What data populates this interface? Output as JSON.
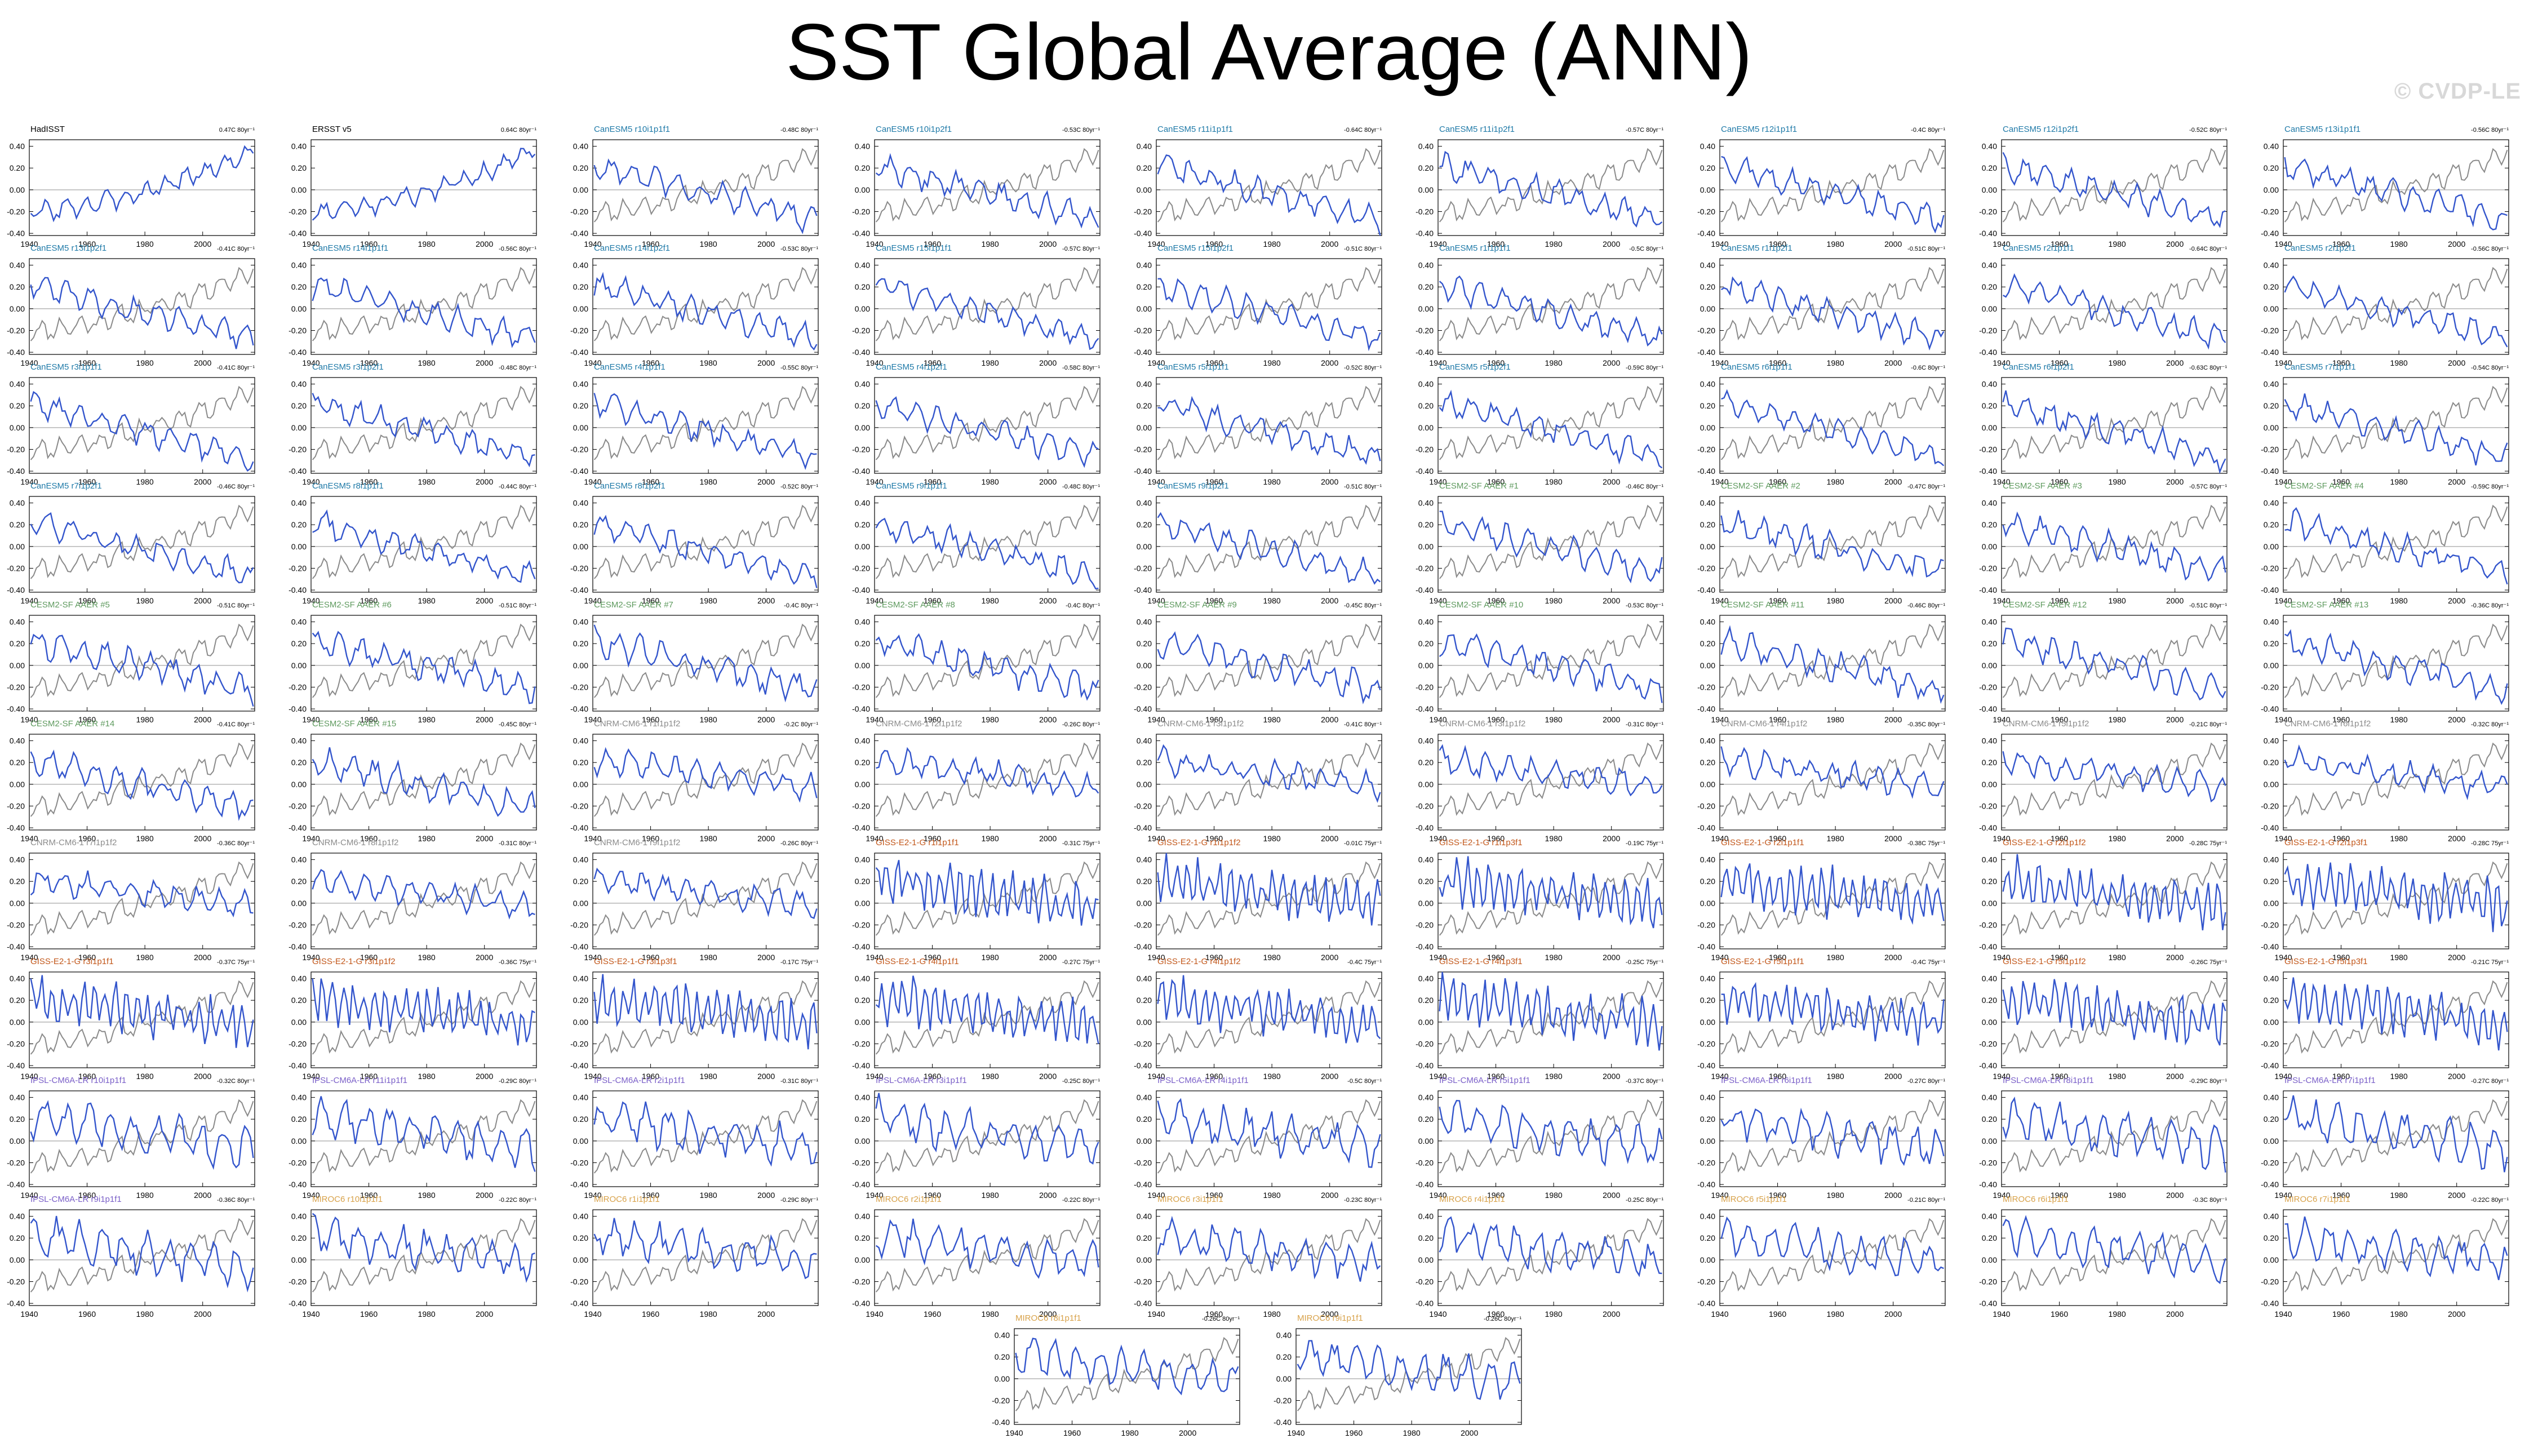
{
  "title": "SST Global Average (ANN)",
  "watermark": "© CVDP-LE",
  "colors": {
    "model_line": "#3355cc",
    "obs_line": "#8a8a8a",
    "obs_title": "#000000",
    "canesm5": "#1f7aa8",
    "cesm2_sf_aaer": "#5e9a5e",
    "cnrm_cm6_1": "#8c8c8c",
    "giss_e2_1_g": "#c2571a",
    "ipsl_cm6a_lr": "#7a5fc8",
    "miroc6": "#d8a24a"
  },
  "chart_data": {
    "type": "line",
    "xlabel": "",
    "ylabel": "",
    "xlim": [
      1940,
      2018
    ],
    "ylim": [
      -0.42,
      0.46
    ],
    "x_ticks": [
      "1940",
      "1960",
      "1980",
      "2000"
    ],
    "y_ticks": [
      "0.40",
      "0.20",
      "0.00",
      "-0.20",
      "-0.40"
    ],
    "grid": false,
    "panels": [
      {
        "title": "HadISST",
        "trend": "0.47C 80yr⁻¹",
        "group": "obs"
      },
      {
        "title": "ERSST v5",
        "trend": "0.64C 80yr⁻¹",
        "group": "obs"
      },
      {
        "title": "CanESM5 r10i1p1f1",
        "trend": "-0.48C 80yr⁻¹",
        "group": "canesm5"
      },
      {
        "title": "CanESM5 r10i1p2f1",
        "trend": "-0.53C 80yr⁻¹",
        "group": "canesm5"
      },
      {
        "title": "CanESM5 r11i1p1f1",
        "trend": "-0.64C 80yr⁻¹",
        "group": "canesm5"
      },
      {
        "title": "CanESM5 r11i1p2f1",
        "trend": "-0.57C 80yr⁻¹",
        "group": "canesm5"
      },
      {
        "title": "CanESM5 r12i1p1f1",
        "trend": "-0.4C 80yr⁻¹",
        "group": "canesm5"
      },
      {
        "title": "CanESM5 r12i1p2f1",
        "trend": "-0.52C 80yr⁻¹",
        "group": "canesm5"
      },
      {
        "title": "CanESM5 r13i1p1f1",
        "trend": "-0.56C 80yr⁻¹",
        "group": "canesm5"
      },
      {
        "title": "CanESM5 r13i1p2f1",
        "trend": "-0.41C 80yr⁻¹",
        "group": "canesm5"
      },
      {
        "title": "CanESM5 r14i1p1f1",
        "trend": "-0.56C 80yr⁻¹",
        "group": "canesm5"
      },
      {
        "title": "CanESM5 r14i1p2f1",
        "trend": "-0.53C 80yr⁻¹",
        "group": "canesm5"
      },
      {
        "title": "CanESM5 r15i1p1f1",
        "trend": "-0.57C 80yr⁻¹",
        "group": "canesm5"
      },
      {
        "title": "CanESM5 r15i1p2f1",
        "trend": "-0.51C 80yr⁻¹",
        "group": "canesm5"
      },
      {
        "title": "CanESM5 r1i1p1f1",
        "trend": "-0.5C 80yr⁻¹",
        "group": "canesm5"
      },
      {
        "title": "CanESM5 r1i1p2f1",
        "trend": "-0.51C 80yr⁻¹",
        "group": "canesm5"
      },
      {
        "title": "CanESM5 r2i1p1f1",
        "trend": "-0.64C 80yr⁻¹",
        "group": "canesm5"
      },
      {
        "title": "CanESM5 r2i1p2f1",
        "trend": "-0.56C 80yr⁻¹",
        "group": "canesm5"
      },
      {
        "title": "CanESM5 r3i1p1f1",
        "trend": "-0.41C 80yr⁻¹",
        "group": "canesm5"
      },
      {
        "title": "CanESM5 r3i1p2f1",
        "trend": "-0.48C 80yr⁻¹",
        "group": "canesm5"
      },
      {
        "title": "CanESM5 r4i1p1f1",
        "trend": "-0.55C 80yr⁻¹",
        "group": "canesm5"
      },
      {
        "title": "CanESM5 r4i1p2f1",
        "trend": "-0.58C 80yr⁻¹",
        "group": "canesm5"
      },
      {
        "title": "CanESM5 r5i1p1f1",
        "trend": "-0.52C 80yr⁻¹",
        "group": "canesm5"
      },
      {
        "title": "CanESM5 r5i1p2f1",
        "trend": "-0.59C 80yr⁻¹",
        "group": "canesm5"
      },
      {
        "title": "CanESM5 r6i1p1f1",
        "trend": "-0.6C 80yr⁻¹",
        "group": "canesm5"
      },
      {
        "title": "CanESM5 r6i1p2f1",
        "trend": "-0.63C 80yr⁻¹",
        "group": "canesm5"
      },
      {
        "title": "CanESM5 r7i1p1f1",
        "trend": "-0.54C 80yr⁻¹",
        "group": "canesm5"
      },
      {
        "title": "CanESM5 r7i1p2f1",
        "trend": "-0.46C 80yr⁻¹",
        "group": "canesm5"
      },
      {
        "title": "CanESM5 r8i1p1f1",
        "trend": "-0.44C 80yr⁻¹",
        "group": "canesm5"
      },
      {
        "title": "CanESM5 r8i1p2f1",
        "trend": "-0.52C 80yr⁻¹",
        "group": "canesm5"
      },
      {
        "title": "CanESM5 r9i1p1f1",
        "trend": "-0.48C 80yr⁻¹",
        "group": "canesm5"
      },
      {
        "title": "CanESM5 r9i1p2f1",
        "trend": "-0.51C 80yr⁻¹",
        "group": "canesm5"
      },
      {
        "title": "CESM2-SF AAER #1",
        "trend": "-0.46C 80yr⁻¹",
        "group": "cesm2_sf_aaer"
      },
      {
        "title": "CESM2-SF AAER #2",
        "trend": "-0.47C 80yr⁻¹",
        "group": "cesm2_sf_aaer"
      },
      {
        "title": "CESM2-SF AAER #3",
        "trend": "-0.57C 80yr⁻¹",
        "group": "cesm2_sf_aaer"
      },
      {
        "title": "CESM2-SF AAER #4",
        "trend": "-0.59C 80yr⁻¹",
        "group": "cesm2_sf_aaer"
      },
      {
        "title": "CESM2-SF AAER #5",
        "trend": "-0.51C 80yr⁻¹",
        "group": "cesm2_sf_aaer"
      },
      {
        "title": "CESM2-SF AAER #6",
        "trend": "-0.51C 80yr⁻¹",
        "group": "cesm2_sf_aaer"
      },
      {
        "title": "CESM2-SF AAER #7",
        "trend": "-0.4C 80yr⁻¹",
        "group": "cesm2_sf_aaer"
      },
      {
        "title": "CESM2-SF AAER #8",
        "trend": "-0.4C 80yr⁻¹",
        "group": "cesm2_sf_aaer"
      },
      {
        "title": "CESM2-SF AAER #9",
        "trend": "-0.45C 80yr⁻¹",
        "group": "cesm2_sf_aaer"
      },
      {
        "title": "CESM2-SF AAER #10",
        "trend": "-0.53C 80yr⁻¹",
        "group": "cesm2_sf_aaer"
      },
      {
        "title": "CESM2-SF AAER #11",
        "trend": "-0.46C 80yr⁻¹",
        "group": "cesm2_sf_aaer"
      },
      {
        "title": "CESM2-SF AAER #12",
        "trend": "-0.51C 80yr⁻¹",
        "group": "cesm2_sf_aaer"
      },
      {
        "title": "CESM2-SF AAER #13",
        "trend": "-0.36C 80yr⁻¹",
        "group": "cesm2_sf_aaer"
      },
      {
        "title": "CESM2-SF AAER #14",
        "trend": "-0.41C 80yr⁻¹",
        "group": "cesm2_sf_aaer"
      },
      {
        "title": "CESM2-SF AAER #15",
        "trend": "-0.45C 80yr⁻¹",
        "group": "cesm2_sf_aaer"
      },
      {
        "title": "CNRM-CM6-1 r1i1p1f2",
        "trend": "-0.2C 80yr⁻¹",
        "group": "cnrm_cm6_1"
      },
      {
        "title": "CNRM-CM6-1 r2i1p1f2",
        "trend": "-0.26C 80yr⁻¹",
        "group": "cnrm_cm6_1"
      },
      {
        "title": "CNRM-CM6-1 r3i1p1f2",
        "trend": "-0.41C 80yr⁻¹",
        "group": "cnrm_cm6_1"
      },
      {
        "title": "CNRM-CM6-1 r3i1p1f2",
        "trend": "-0.31C 80yr⁻¹",
        "group": "cnrm_cm6_1"
      },
      {
        "title": "CNRM-CM6-1 r4i1p1f2",
        "trend": "-0.35C 80yr⁻¹",
        "group": "cnrm_cm6_1"
      },
      {
        "title": "CNRM-CM6-1 r5i1p1f2",
        "trend": "-0.21C 80yr⁻¹",
        "group": "cnrm_cm6_1"
      },
      {
        "title": "CNRM-CM6-1 r6i1p1f2",
        "trend": "-0.32C 80yr⁻¹",
        "group": "cnrm_cm6_1"
      },
      {
        "title": "CNRM-CM6-1 r7i1p1f2",
        "trend": "-0.36C 80yr⁻¹",
        "group": "cnrm_cm6_1"
      },
      {
        "title": "CNRM-CM6-1 r8i1p1f2",
        "trend": "-0.31C 80yr⁻¹",
        "group": "cnrm_cm6_1"
      },
      {
        "title": "CNRM-CM6-1 r9i1p1f2",
        "trend": "-0.26C 80yr⁻¹",
        "group": "cnrm_cm6_1"
      },
      {
        "title": "GISS-E2-1-G r1i1p1f1",
        "trend": "-0.31C 75yr⁻¹",
        "group": "giss_e2_1_g"
      },
      {
        "title": "GISS-E2-1-G r1i1p1f2",
        "trend": "-0.01C 75yr⁻¹",
        "group": "giss_e2_1_g"
      },
      {
        "title": "GISS-E2-1-G r1i1p3f1",
        "trend": "-0.19C 75yr⁻¹",
        "group": "giss_e2_1_g"
      },
      {
        "title": "GISS-E2-1-G r2i1p1f1",
        "trend": "-0.38C 75yr⁻¹",
        "group": "giss_e2_1_g"
      },
      {
        "title": "GISS-E2-1-G r2i1p1f2",
        "trend": "-0.28C 75yr⁻¹",
        "group": "giss_e2_1_g"
      },
      {
        "title": "GISS-E2-1-G r2i1p3f1",
        "trend": "-0.28C 75yr⁻¹",
        "group": "giss_e2_1_g"
      },
      {
        "title": "GISS-E2-1-G r3i1p1f1",
        "trend": "-0.37C 75yr⁻¹",
        "group": "giss_e2_1_g"
      },
      {
        "title": "GISS-E2-1-G r3i1p1f2",
        "trend": "-0.36C 75yr⁻¹",
        "group": "giss_e2_1_g"
      },
      {
        "title": "GISS-E2-1-G r3i1p3f1",
        "trend": "-0.17C 75yr⁻¹",
        "group": "giss_e2_1_g"
      },
      {
        "title": "GISS-E2-1-G r4i1p1f1",
        "trend": "-0.27C 75yr⁻¹",
        "group": "giss_e2_1_g"
      },
      {
        "title": "GISS-E2-1-G r4i1p1f2",
        "trend": "-0.4C 75yr⁻¹",
        "group": "giss_e2_1_g"
      },
      {
        "title": "GISS-E2-1-G r4i1p3f1",
        "trend": "-0.25C 75yr⁻¹",
        "group": "giss_e2_1_g"
      },
      {
        "title": "GISS-E2-1-G r5i1p1f1",
        "trend": "-0.4C 75yr⁻¹",
        "group": "giss_e2_1_g"
      },
      {
        "title": "GISS-E2-1-G r5i1p1f2",
        "trend": "-0.26C 75yr⁻¹",
        "group": "giss_e2_1_g"
      },
      {
        "title": "GISS-E2-1-G r5i1p3f1",
        "trend": "-0.21C 75yr⁻¹",
        "group": "giss_e2_1_g"
      },
      {
        "title": "IPSL-CM6A-LR r10i1p1f1",
        "trend": "-0.32C 80yr⁻¹",
        "group": "ipsl_cm6a_lr"
      },
      {
        "title": "IPSL-CM6A-LR r11i1p1f1",
        "trend": "-0.29C 80yr⁻¹",
        "group": "ipsl_cm6a_lr"
      },
      {
        "title": "IPSL-CM6A-LR r2i1p1f1",
        "trend": "-0.31C 80yr⁻¹",
        "group": "ipsl_cm6a_lr"
      },
      {
        "title": "IPSL-CM6A-LR r3i1p1f1",
        "trend": "-0.25C 80yr⁻¹",
        "group": "ipsl_cm6a_lr"
      },
      {
        "title": "IPSL-CM6A-LR r4i1p1f1",
        "trend": "-0.5C 80yr⁻¹",
        "group": "ipsl_cm6a_lr"
      },
      {
        "title": "IPSL-CM6A-LR r5i1p1f1",
        "trend": "-0.37C 80yr⁻¹",
        "group": "ipsl_cm6a_lr"
      },
      {
        "title": "IPSL-CM6A-LR r6i1p1f1",
        "trend": "-0.27C 80yr⁻¹",
        "group": "ipsl_cm6a_lr"
      },
      {
        "title": "IPSL-CM6A-LR r8i1p1f1",
        "trend": "-0.29C 80yr⁻¹",
        "group": "ipsl_cm6a_lr"
      },
      {
        "title": "IPSL-CM6A-LR r7i1p1f1",
        "trend": "-0.27C 80yr⁻¹",
        "group": "ipsl_cm6a_lr"
      },
      {
        "title": "IPSL-CM6A-LR r9i1p1f1",
        "trend": "-0.36C 80yr⁻¹",
        "group": "ipsl_cm6a_lr"
      },
      {
        "title": "MIROC6 r10i1p1f1",
        "trend": "-0.22C 80yr⁻¹",
        "group": "miroc6"
      },
      {
        "title": "MIROC6 r1i1p1f1",
        "trend": "-0.29C 80yr⁻¹",
        "group": "miroc6"
      },
      {
        "title": "MIROC6 r2i1p1f1",
        "trend": "-0.22C 80yr⁻¹",
        "group": "miroc6"
      },
      {
        "title": "MIROC6 r3i1p1f1",
        "trend": "-0.23C 80yr⁻¹",
        "group": "miroc6"
      },
      {
        "title": "MIROC6 r4i1p1f1",
        "trend": "-0.25C 80yr⁻¹",
        "group": "miroc6"
      },
      {
        "title": "MIROC6 r5i1p1f1",
        "trend": "-0.21C 80yr⁻¹",
        "group": "miroc6"
      },
      {
        "title": "MIROC6 r6i1p1f1",
        "trend": "-0.3C 80yr⁻¹",
        "group": "miroc6"
      },
      {
        "title": "MIROC6 r7i1p1f1",
        "trend": "-0.22C 80yr⁻¹",
        "group": "miroc6"
      },
      {
        "title": "MIROC6 r8i1p1f1",
        "trend": "-0.26C 80yr⁻¹",
        "group": "miroc6"
      },
      {
        "title": "MIROC6 r9i1p1f1",
        "trend": "-0.26C 80yr⁻¹",
        "group": "miroc6"
      }
    ]
  }
}
